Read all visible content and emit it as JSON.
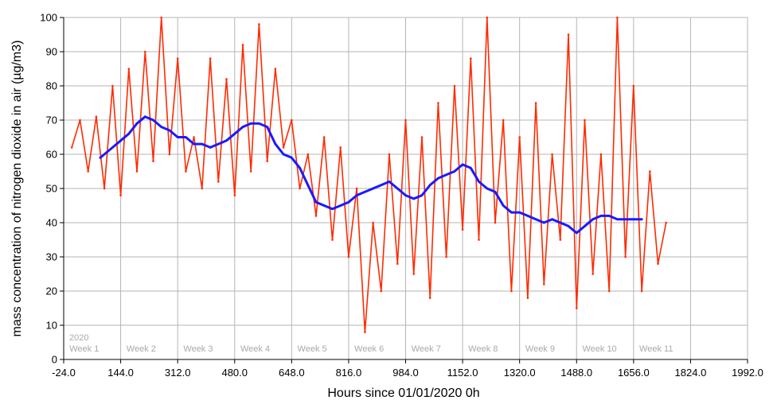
{
  "chart_data": {
    "type": "line",
    "xlabel": "Hours since 01/01/2020  0h",
    "ylabel": "mass concentration of nitrogen dioxide in air (µg/m3)",
    "xlim": [
      -24,
      1992
    ],
    "ylim": [
      0,
      100
    ],
    "x_ticks": [
      -24,
      144,
      312,
      480,
      648,
      816,
      984,
      1152,
      1320,
      1488,
      1656,
      1824,
      1992
    ],
    "x_tick_labels": [
      "-24.0",
      "144.0",
      "312.0",
      "480.0",
      "648.0",
      "816.0",
      "984.0",
      "1152.0",
      "1320.0",
      "1488.0",
      "1656.0",
      "1824.0",
      "1992.0"
    ],
    "y_ticks": [
      0,
      10,
      20,
      30,
      40,
      50,
      60,
      70,
      80,
      90,
      100
    ],
    "grid": true,
    "year_label": "2020",
    "week_labels": [
      "Week 1",
      "Week 2",
      "Week 3",
      "Week 4",
      "Week 5",
      "Week 6",
      "Week 7",
      "Week 8",
      "Week 9",
      "Week 10",
      "Week 11"
    ],
    "week_label_hours": [
      0,
      168,
      336,
      504,
      672,
      840,
      1008,
      1176,
      1344,
      1512,
      1680
    ],
    "week_boundary_hours": [
      144,
      312,
      480,
      648,
      816,
      984,
      1152,
      1320,
      1488,
      1656,
      1824
    ],
    "series": [
      {
        "color": "#ff2a00",
        "x": [
          0,
          24,
          48,
          72,
          96,
          120,
          144,
          168,
          192,
          216,
          240,
          264,
          288,
          312,
          336,
          360,
          384,
          408,
          432,
          456,
          480,
          504,
          528,
          552,
          576,
          600,
          624,
          648,
          672,
          696,
          720,
          744,
          768,
          792,
          816,
          840,
          864,
          888,
          912,
          936,
          960,
          984,
          1008,
          1032,
          1056,
          1080,
          1104,
          1128,
          1152,
          1176,
          1200,
          1224,
          1248,
          1272,
          1296,
          1320,
          1344,
          1368,
          1392,
          1416,
          1440,
          1464,
          1488,
          1512,
          1536,
          1560,
          1584,
          1608,
          1632,
          1656,
          1680,
          1704,
          1728,
          1752
        ],
        "y": [
          62,
          70,
          55,
          71,
          50,
          80,
          48,
          85,
          55,
          90,
          58,
          100,
          60,
          88,
          55,
          65,
          50,
          88,
          52,
          82,
          48,
          92,
          55,
          98,
          58,
          85,
          62,
          70,
          50,
          60,
          42,
          65,
          35,
          62,
          30,
          50,
          8,
          40,
          20,
          60,
          28,
          70,
          25,
          65,
          18,
          75,
          30,
          80,
          38,
          88,
          35,
          100,
          40,
          70,
          20,
          65,
          18,
          75,
          22,
          60,
          35,
          95,
          15,
          70,
          25,
          60,
          20,
          100,
          30,
          80,
          20,
          55,
          28,
          40
        ]
      },
      {
        "color": "#1a1aff",
        "x": [
          84,
          96,
          120,
          144,
          168,
          192,
          216,
          240,
          264,
          288,
          312,
          336,
          360,
          384,
          408,
          432,
          456,
          480,
          504,
          528,
          552,
          576,
          600,
          624,
          648,
          672,
          696,
          720,
          744,
          768,
          792,
          816,
          840,
          864,
          888,
          912,
          936,
          960,
          984,
          1008,
          1032,
          1056,
          1080,
          1104,
          1128,
          1152,
          1176,
          1200,
          1224,
          1248,
          1272,
          1296,
          1320,
          1344,
          1368,
          1392,
          1416,
          1440,
          1464,
          1488,
          1512,
          1536,
          1560,
          1584,
          1608,
          1632,
          1656,
          1680
        ],
        "y": [
          59,
          60,
          62,
          64,
          66,
          69,
          71,
          70,
          68,
          67,
          65,
          65,
          63,
          63,
          62,
          63,
          64,
          66,
          68,
          69,
          69,
          68,
          63,
          60,
          59,
          56,
          51,
          46,
          45,
          44,
          45,
          46,
          48,
          49,
          50,
          51,
          52,
          50,
          48,
          47,
          48,
          51,
          53,
          54,
          55,
          57,
          56,
          52,
          50,
          49,
          45,
          43,
          43,
          42,
          41,
          40,
          41,
          40,
          39,
          37,
          39,
          41,
          42,
          42,
          41,
          41,
          41,
          41
        ]
      }
    ]
  }
}
